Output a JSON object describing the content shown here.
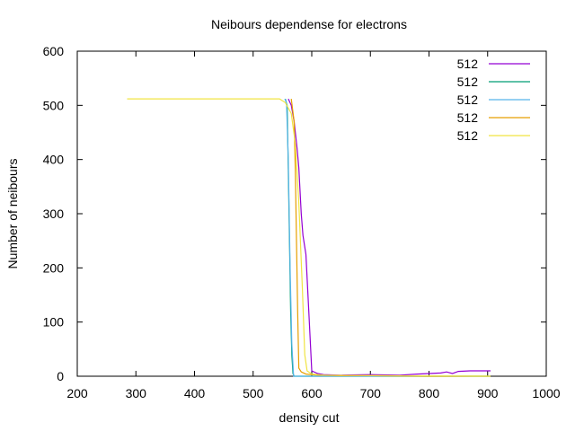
{
  "chart_data": {
    "type": "line",
    "title": "Neibours dependense for electrons",
    "xlabel": "density cut",
    "ylabel": "Number of neibours",
    "xlim": [
      200,
      1000
    ],
    "ylim": [
      0,
      600
    ],
    "xticks": [
      200,
      300,
      400,
      500,
      600,
      700,
      800,
      900,
      1000
    ],
    "yticks": [
      0,
      100,
      200,
      300,
      400,
      500,
      600
    ],
    "grid": false,
    "legend_position": "top-right",
    "series": [
      {
        "name": "512",
        "color": "#9400d3",
        "x": [
          560,
          565,
          570,
          575,
          578,
          582,
          585,
          590,
          595,
          600,
          610,
          620,
          650,
          700,
          750,
          780,
          800,
          820,
          830,
          840,
          850,
          870,
          905
        ],
        "y": [
          512,
          500,
          470,
          420,
          385,
          300,
          260,
          225,
          120,
          10,
          5,
          3,
          2,
          3,
          2,
          4,
          5,
          6,
          8,
          5,
          9,
          10,
          10
        ]
      },
      {
        "name": "512",
        "color": "#009e73",
        "x": [
          555,
          558,
          560,
          562,
          564,
          566,
          568,
          570,
          600,
          700,
          800,
          905
        ],
        "y": [
          512,
          500,
          380,
          250,
          120,
          40,
          5,
          0,
          0,
          0,
          0,
          0
        ]
      },
      {
        "name": "512",
        "color": "#56b4e9",
        "x": [
          554,
          557,
          560,
          563,
          566,
          569,
          600,
          700,
          800,
          905
        ],
        "y": [
          512,
          505,
          400,
          200,
          60,
          0,
          0,
          0,
          0,
          0
        ]
      },
      {
        "name": "512",
        "color": "#e69f00",
        "x": [
          565,
          570,
          572,
          574,
          576,
          578,
          582,
          590,
          610,
          650,
          700,
          800,
          905
        ],
        "y": [
          512,
          470,
          380,
          250,
          120,
          15,
          8,
          4,
          2,
          1,
          1,
          0,
          0
        ]
      },
      {
        "name": "512",
        "color": "#f0e442",
        "x": [
          285,
          400,
          500,
          545,
          555,
          565,
          572,
          578,
          584,
          588,
          592,
          600,
          620,
          700,
          905
        ],
        "y": [
          512,
          512,
          512,
          512,
          505,
          485,
          430,
          320,
          160,
          40,
          10,
          4,
          2,
          1,
          0
        ]
      }
    ]
  }
}
